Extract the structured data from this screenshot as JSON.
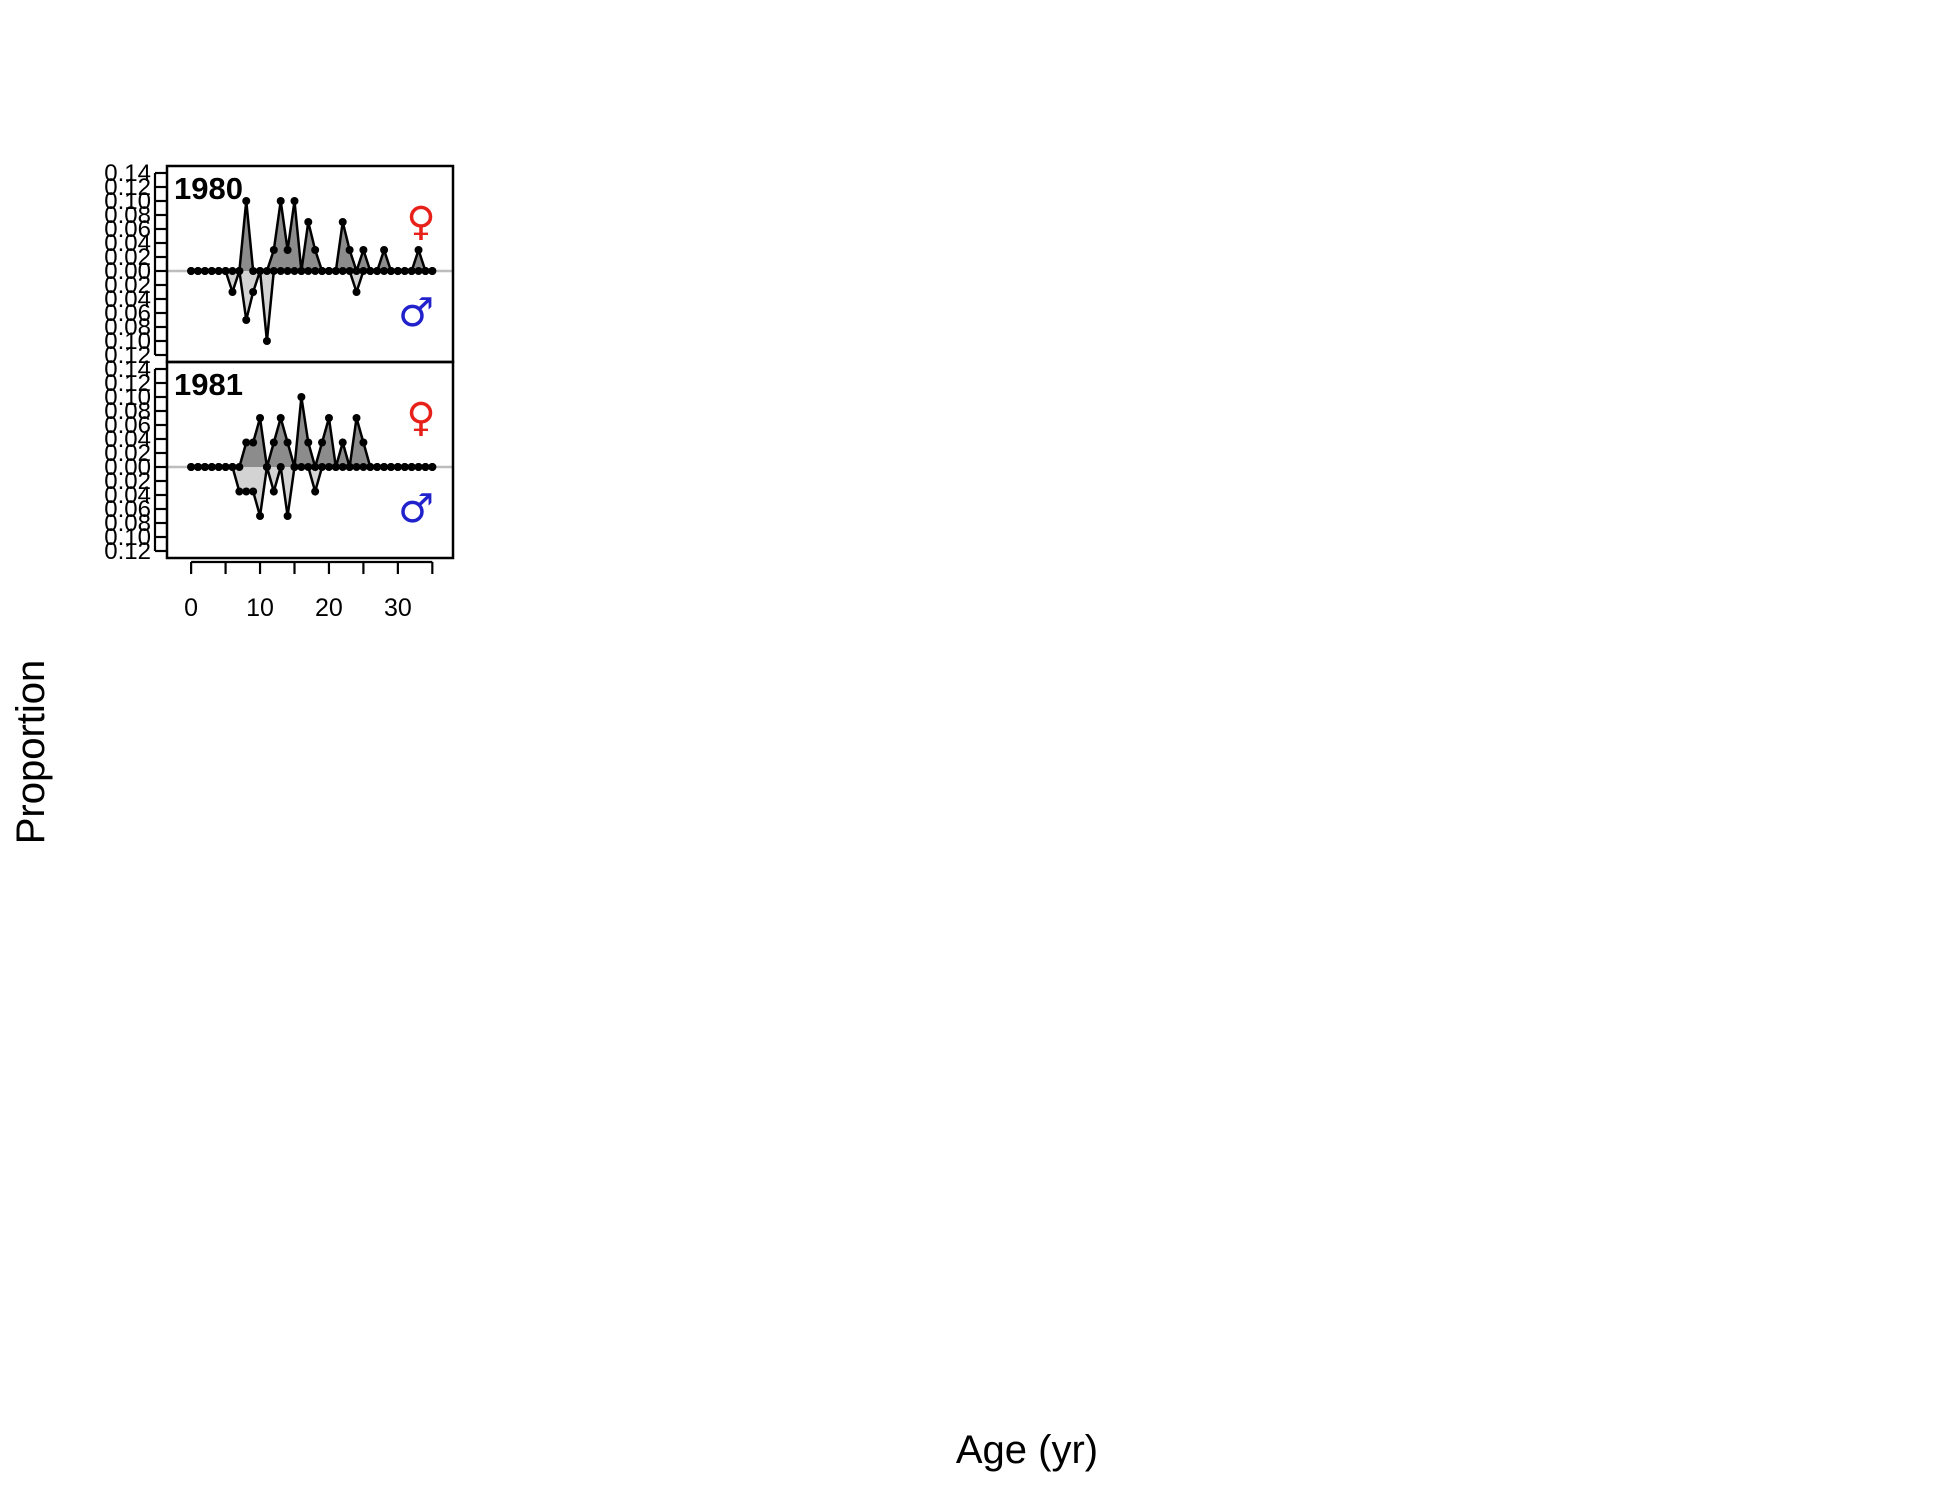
{
  "chart_data": {
    "type": "area",
    "xlabel": "Age (yr)",
    "ylabel": "Proportion",
    "xlim": [
      -3.5,
      38
    ],
    "ylim": [
      -0.13,
      0.15
    ],
    "x_ticks": [
      0,
      5,
      10,
      15,
      20,
      25,
      30,
      35
    ],
    "x_tick_labels": [
      "0",
      "10",
      "20",
      "30"
    ],
    "x_tick_label_values": [
      0,
      10,
      20,
      30
    ],
    "y_ticks_upper": [
      {
        "v": 0.14,
        "label": "0.14"
      },
      {
        "v": 0.12,
        "label": "0.12"
      },
      {
        "v": 0.1,
        "label": "0.10"
      },
      {
        "v": 0.08,
        "label": "0.08"
      },
      {
        "v": 0.06,
        "label": "0.06"
      },
      {
        "v": 0.04,
        "label": "0.04"
      },
      {
        "v": 0.02,
        "label": "0.02"
      },
      {
        "v": 0.0,
        "label": "0.00"
      }
    ],
    "y_ticks_lower": [
      {
        "v": -0.02,
        "label": "0.02"
      },
      {
        "v": -0.04,
        "label": "0.04"
      },
      {
        "v": -0.06,
        "label": "0.06"
      },
      {
        "v": -0.08,
        "label": "0.08"
      },
      {
        "v": -0.1,
        "label": "0.10"
      },
      {
        "v": -0.12,
        "label": "0.12"
      }
    ],
    "female_symbol": "♀",
    "male_symbol": "♂",
    "colors": {
      "female_fill": "#8c8c8c",
      "male_fill": "#d3d3d3",
      "female_symbol": "#e8201a",
      "male_symbol": "#2222cc",
      "zero_line": "#bdbdbd"
    },
    "x": [
      0,
      1,
      2,
      3,
      4,
      5,
      6,
      7,
      8,
      9,
      10,
      11,
      12,
      13,
      14,
      15,
      16,
      17,
      18,
      19,
      20,
      21,
      22,
      23,
      24,
      25,
      26,
      27,
      28,
      29,
      30,
      31,
      32,
      33,
      34,
      35
    ],
    "panels": [
      {
        "title": "1980",
        "series": [
          {
            "sex": "female",
            "values": [
              0,
              0,
              0,
              0,
              0,
              0,
              0,
              0,
              0.1,
              0,
              0,
              0,
              0.03,
              0.1,
              0.03,
              0.1,
              0,
              0.07,
              0.03,
              0,
              0,
              0,
              0.07,
              0.03,
              0,
              0.03,
              0,
              0,
              0.03,
              0,
              0,
              0,
              0,
              0.03,
              0,
              0
            ]
          },
          {
            "sex": "male",
            "values": [
              0,
              0,
              0,
              0,
              0,
              0,
              0.03,
              0,
              0.07,
              0.03,
              0,
              0.1,
              0,
              0,
              0,
              0,
              0,
              0,
              0,
              0,
              0,
              0,
              0,
              0,
              0.03,
              0,
              0,
              0,
              0,
              0,
              0,
              0,
              0,
              0,
              0,
              0
            ]
          }
        ]
      },
      {
        "title": "1981",
        "series": [
          {
            "sex": "female",
            "values": [
              0,
              0,
              0,
              0,
              0,
              0,
              0,
              0,
              0.035,
              0.035,
              0.07,
              0,
              0.035,
              0.07,
              0.035,
              0,
              0.1,
              0.035,
              0,
              0.035,
              0.07,
              0,
              0.035,
              0,
              0.07,
              0.035,
              0,
              0,
              0,
              0,
              0,
              0,
              0,
              0,
              0,
              0
            ]
          },
          {
            "sex": "male",
            "values": [
              0,
              0,
              0,
              0,
              0,
              0,
              0,
              0.035,
              0.035,
              0.035,
              0.07,
              0,
              0.035,
              0,
              0.07,
              0,
              0,
              0,
              0.035,
              0,
              0,
              0,
              0,
              0,
              0,
              0,
              0,
              0,
              0,
              0,
              0,
              0,
              0,
              0,
              0,
              0
            ]
          }
        ]
      }
    ]
  }
}
